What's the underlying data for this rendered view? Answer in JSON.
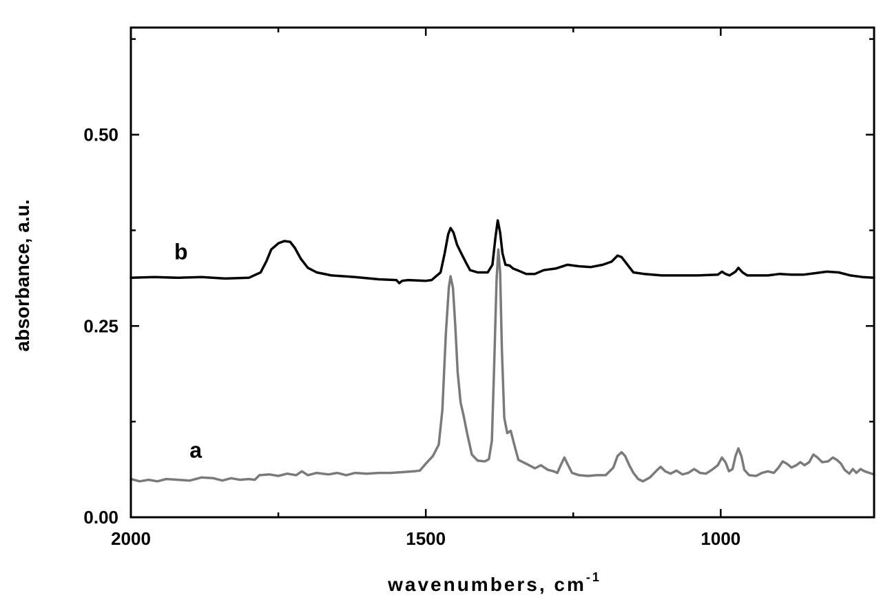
{
  "chart_data": {
    "type": "line",
    "xlabel": "wavenumbers, cm",
    "xlabel_superscript": "-1",
    "ylabel": "absorbance, a.u.",
    "xlim": [
      2000,
      740
    ],
    "ylim": [
      0.0,
      0.64
    ],
    "x_ticks": [
      {
        "value": 2000,
        "label": "2000"
      },
      {
        "value": 1500,
        "label": "1500"
      },
      {
        "value": 1000,
        "label": "1000"
      }
    ],
    "x_minor_ticks": [
      1750,
      1250
    ],
    "y_ticks": [
      {
        "value": 0.0,
        "label": "0.00"
      },
      {
        "value": 0.25,
        "label": "0.25"
      },
      {
        "value": 0.5,
        "label": "0.50"
      }
    ],
    "y_minor_ticks": [
      0.125,
      0.375,
      0.625
    ],
    "grid": false,
    "series": [
      {
        "name": "b",
        "color": "#000000",
        "label_pos": [
          1915,
          0.337
        ],
        "points": [
          [
            2000,
            0.313
          ],
          [
            1960,
            0.314
          ],
          [
            1920,
            0.313
          ],
          [
            1880,
            0.314
          ],
          [
            1840,
            0.312
          ],
          [
            1800,
            0.313
          ],
          [
            1780,
            0.32
          ],
          [
            1770,
            0.335
          ],
          [
            1762,
            0.35
          ],
          [
            1750,
            0.358
          ],
          [
            1740,
            0.361
          ],
          [
            1730,
            0.36
          ],
          [
            1722,
            0.352
          ],
          [
            1712,
            0.338
          ],
          [
            1700,
            0.326
          ],
          [
            1685,
            0.32
          ],
          [
            1660,
            0.316
          ],
          [
            1620,
            0.314
          ],
          [
            1580,
            0.311
          ],
          [
            1550,
            0.31
          ],
          [
            1545,
            0.306
          ],
          [
            1540,
            0.309
          ],
          [
            1530,
            0.31
          ],
          [
            1500,
            0.309
          ],
          [
            1490,
            0.31
          ],
          [
            1475,
            0.32
          ],
          [
            1468,
            0.345
          ],
          [
            1462,
            0.37
          ],
          [
            1458,
            0.378
          ],
          [
            1453,
            0.372
          ],
          [
            1447,
            0.356
          ],
          [
            1440,
            0.345
          ],
          [
            1432,
            0.333
          ],
          [
            1425,
            0.323
          ],
          [
            1412,
            0.32
          ],
          [
            1395,
            0.32
          ],
          [
            1387,
            0.33
          ],
          [
            1382,
            0.365
          ],
          [
            1378,
            0.388
          ],
          [
            1374,
            0.372
          ],
          [
            1370,
            0.345
          ],
          [
            1365,
            0.33
          ],
          [
            1358,
            0.329
          ],
          [
            1352,
            0.325
          ],
          [
            1342,
            0.322
          ],
          [
            1330,
            0.318
          ],
          [
            1315,
            0.318
          ],
          [
            1300,
            0.323
          ],
          [
            1280,
            0.325
          ],
          [
            1260,
            0.33
          ],
          [
            1240,
            0.328
          ],
          [
            1220,
            0.327
          ],
          [
            1200,
            0.33
          ],
          [
            1185,
            0.334
          ],
          [
            1175,
            0.342
          ],
          [
            1168,
            0.34
          ],
          [
            1158,
            0.33
          ],
          [
            1148,
            0.32
          ],
          [
            1130,
            0.318
          ],
          [
            1100,
            0.316
          ],
          [
            1060,
            0.316
          ],
          [
            1040,
            0.316
          ],
          [
            1005,
            0.317
          ],
          [
            998,
            0.321
          ],
          [
            992,
            0.318
          ],
          [
            985,
            0.316
          ],
          [
            975,
            0.321
          ],
          [
            970,
            0.326
          ],
          [
            963,
            0.32
          ],
          [
            955,
            0.316
          ],
          [
            920,
            0.316
          ],
          [
            900,
            0.318
          ],
          [
            880,
            0.317
          ],
          [
            860,
            0.317
          ],
          [
            840,
            0.319
          ],
          [
            820,
            0.321
          ],
          [
            800,
            0.32
          ],
          [
            780,
            0.316
          ],
          [
            760,
            0.314
          ],
          [
            740,
            0.313
          ]
        ]
      },
      {
        "name": "a",
        "color": "#7a7a7a",
        "label_pos": [
          1890,
          0.078
        ],
        "points": [
          [
            2000,
            0.05
          ],
          [
            1985,
            0.047
          ],
          [
            1970,
            0.049
          ],
          [
            1955,
            0.047
          ],
          [
            1940,
            0.05
          ],
          [
            1920,
            0.049
          ],
          [
            1900,
            0.048
          ],
          [
            1880,
            0.052
          ],
          [
            1860,
            0.051
          ],
          [
            1845,
            0.048
          ],
          [
            1830,
            0.051
          ],
          [
            1815,
            0.049
          ],
          [
            1800,
            0.05
          ],
          [
            1790,
            0.049
          ],
          [
            1782,
            0.055
          ],
          [
            1765,
            0.056
          ],
          [
            1750,
            0.054
          ],
          [
            1735,
            0.057
          ],
          [
            1720,
            0.055
          ],
          [
            1710,
            0.06
          ],
          [
            1700,
            0.055
          ],
          [
            1685,
            0.058
          ],
          [
            1665,
            0.056
          ],
          [
            1650,
            0.058
          ],
          [
            1635,
            0.055
          ],
          [
            1620,
            0.058
          ],
          [
            1600,
            0.057
          ],
          [
            1580,
            0.058
          ],
          [
            1560,
            0.058
          ],
          [
            1540,
            0.059
          ],
          [
            1520,
            0.06
          ],
          [
            1510,
            0.061
          ],
          [
            1500,
            0.07
          ],
          [
            1488,
            0.08
          ],
          [
            1478,
            0.095
          ],
          [
            1472,
            0.14
          ],
          [
            1466,
            0.24
          ],
          [
            1461,
            0.3
          ],
          [
            1458,
            0.315
          ],
          [
            1454,
            0.3
          ],
          [
            1450,
            0.25
          ],
          [
            1446,
            0.19
          ],
          [
            1441,
            0.15
          ],
          [
            1436,
            0.133
          ],
          [
            1430,
            0.11
          ],
          [
            1422,
            0.082
          ],
          [
            1412,
            0.074
          ],
          [
            1400,
            0.073
          ],
          [
            1393,
            0.076
          ],
          [
            1388,
            0.1
          ],
          [
            1384,
            0.2
          ],
          [
            1380,
            0.31
          ],
          [
            1377,
            0.35
          ],
          [
            1374,
            0.32
          ],
          [
            1371,
            0.22
          ],
          [
            1367,
            0.13
          ],
          [
            1362,
            0.11
          ],
          [
            1356,
            0.113
          ],
          [
            1350,
            0.095
          ],
          [
            1343,
            0.075
          ],
          [
            1330,
            0.07
          ],
          [
            1315,
            0.064
          ],
          [
            1305,
            0.068
          ],
          [
            1293,
            0.062
          ],
          [
            1283,
            0.06
          ],
          [
            1277,
            0.058
          ],
          [
            1270,
            0.07
          ],
          [
            1265,
            0.078
          ],
          [
            1260,
            0.07
          ],
          [
            1252,
            0.058
          ],
          [
            1240,
            0.055
          ],
          [
            1225,
            0.054
          ],
          [
            1210,
            0.055
          ],
          [
            1195,
            0.055
          ],
          [
            1182,
            0.065
          ],
          [
            1175,
            0.08
          ],
          [
            1168,
            0.085
          ],
          [
            1162,
            0.08
          ],
          [
            1155,
            0.068
          ],
          [
            1148,
            0.058
          ],
          [
            1140,
            0.05
          ],
          [
            1132,
            0.047
          ],
          [
            1120,
            0.052
          ],
          [
            1110,
            0.06
          ],
          [
            1102,
            0.066
          ],
          [
            1094,
            0.06
          ],
          [
            1085,
            0.057
          ],
          [
            1075,
            0.061
          ],
          [
            1065,
            0.056
          ],
          [
            1055,
            0.058
          ],
          [
            1045,
            0.063
          ],
          [
            1035,
            0.058
          ],
          [
            1025,
            0.057
          ],
          [
            1015,
            0.062
          ],
          [
            1005,
            0.068
          ],
          [
            998,
            0.078
          ],
          [
            992,
            0.072
          ],
          [
            986,
            0.06
          ],
          [
            980,
            0.063
          ],
          [
            975,
            0.08
          ],
          [
            970,
            0.09
          ],
          [
            965,
            0.08
          ],
          [
            960,
            0.062
          ],
          [
            952,
            0.055
          ],
          [
            940,
            0.054
          ],
          [
            930,
            0.058
          ],
          [
            920,
            0.06
          ],
          [
            910,
            0.058
          ],
          [
            902,
            0.065
          ],
          [
            895,
            0.073
          ],
          [
            888,
            0.07
          ],
          [
            880,
            0.065
          ],
          [
            872,
            0.068
          ],
          [
            865,
            0.072
          ],
          [
            858,
            0.068
          ],
          [
            850,
            0.072
          ],
          [
            843,
            0.082
          ],
          [
            836,
            0.078
          ],
          [
            828,
            0.072
          ],
          [
            818,
            0.073
          ],
          [
            810,
            0.078
          ],
          [
            803,
            0.075
          ],
          [
            796,
            0.07
          ],
          [
            790,
            0.062
          ],
          [
            782,
            0.057
          ],
          [
            776,
            0.063
          ],
          [
            770,
            0.058
          ],
          [
            763,
            0.063
          ],
          [
            756,
            0.06
          ],
          [
            748,
            0.058
          ],
          [
            740,
            0.056
          ]
        ]
      }
    ]
  }
}
